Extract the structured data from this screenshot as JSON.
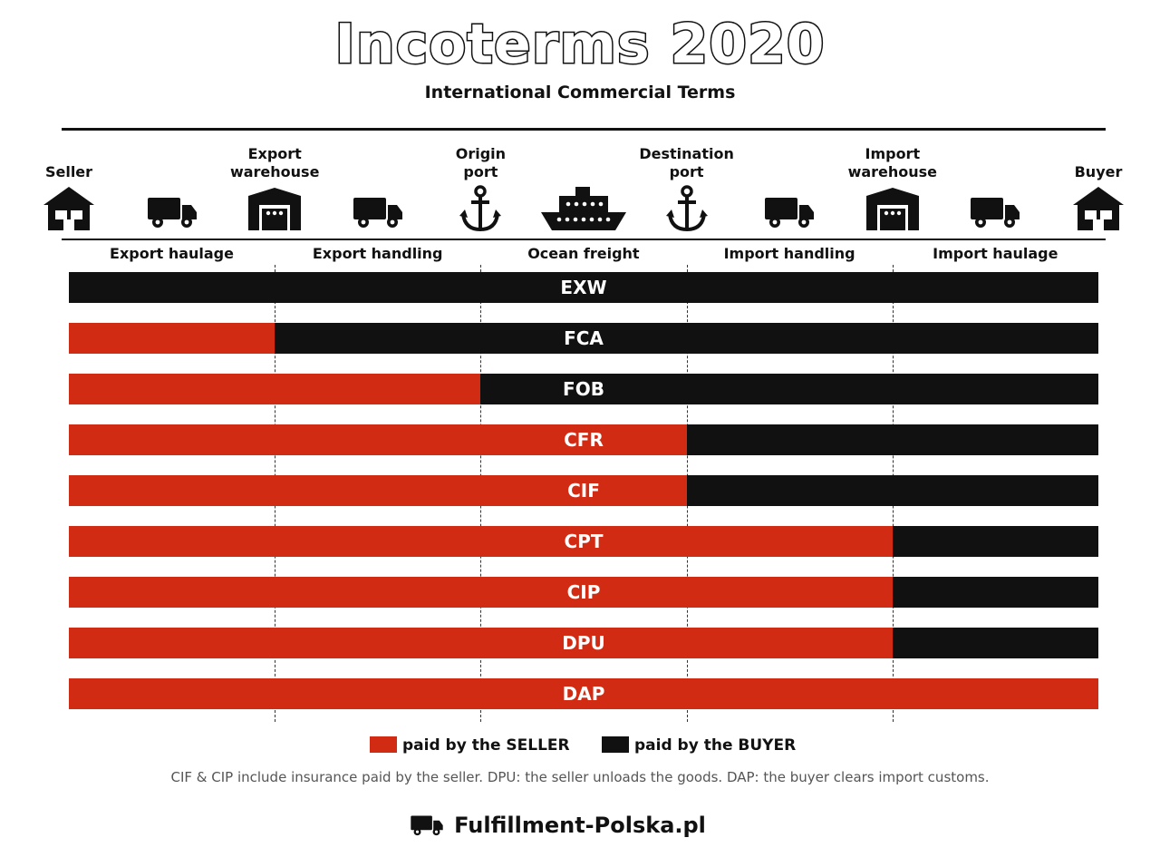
{
  "header": {
    "title": "Incoterms 2020",
    "subtitle": "International Commercial Terms"
  },
  "colors": {
    "seller": "#d22b14",
    "buyer": "#111111"
  },
  "stations": [
    {
      "id": "seller",
      "line1": "",
      "line2": "Seller",
      "icon": "house-icon"
    },
    {
      "id": "export-warehouse",
      "line1": "Export",
      "line2": "warehouse",
      "icon": "warehouse-icon"
    },
    {
      "id": "origin-port",
      "line1": "Origin",
      "line2": "port",
      "icon": "anchor-icon"
    },
    {
      "id": "destination-port",
      "line1": "Destination",
      "line2": "port",
      "icon": "anchor-icon"
    },
    {
      "id": "import-warehouse",
      "line1": "Import",
      "line2": "warehouse",
      "icon": "warehouse-icon"
    },
    {
      "id": "buyer",
      "line1": "",
      "line2": "Buyer",
      "icon": "house-icon"
    }
  ],
  "segments": [
    {
      "label": "Export haulage",
      "icon": "truck-icon"
    },
    {
      "label": "Export handling",
      "icon": "truck-icon"
    },
    {
      "label": "Ocean freight",
      "icon": "ship-icon"
    },
    {
      "label": "Import handling",
      "icon": "truck-icon"
    },
    {
      "label": "Import haulage",
      "icon": "truck-icon"
    }
  ],
  "terms": [
    {
      "code": "EXW",
      "seller_segments": 0
    },
    {
      "code": "FCA",
      "seller_segments": 1
    },
    {
      "code": "FOB",
      "seller_segments": 2
    },
    {
      "code": "CFR",
      "seller_segments": 3
    },
    {
      "code": "CIF",
      "seller_segments": 3
    },
    {
      "code": "CPT",
      "seller_segments": 4
    },
    {
      "code": "CIP",
      "seller_segments": 4
    },
    {
      "code": "DPU",
      "seller_segments": 4
    },
    {
      "code": "DAP",
      "seller_segments": 5
    }
  ],
  "legend": {
    "seller": "paid by the SELLER",
    "buyer": "paid by the BUYER"
  },
  "note": "CIF & CIP include insurance paid by the seller. DPU: the seller unloads the goods. DAP: the buyer clears import customs.",
  "footer": {
    "brand": "Fulfillment-Polska.pl",
    "icon": "truck-icon"
  }
}
